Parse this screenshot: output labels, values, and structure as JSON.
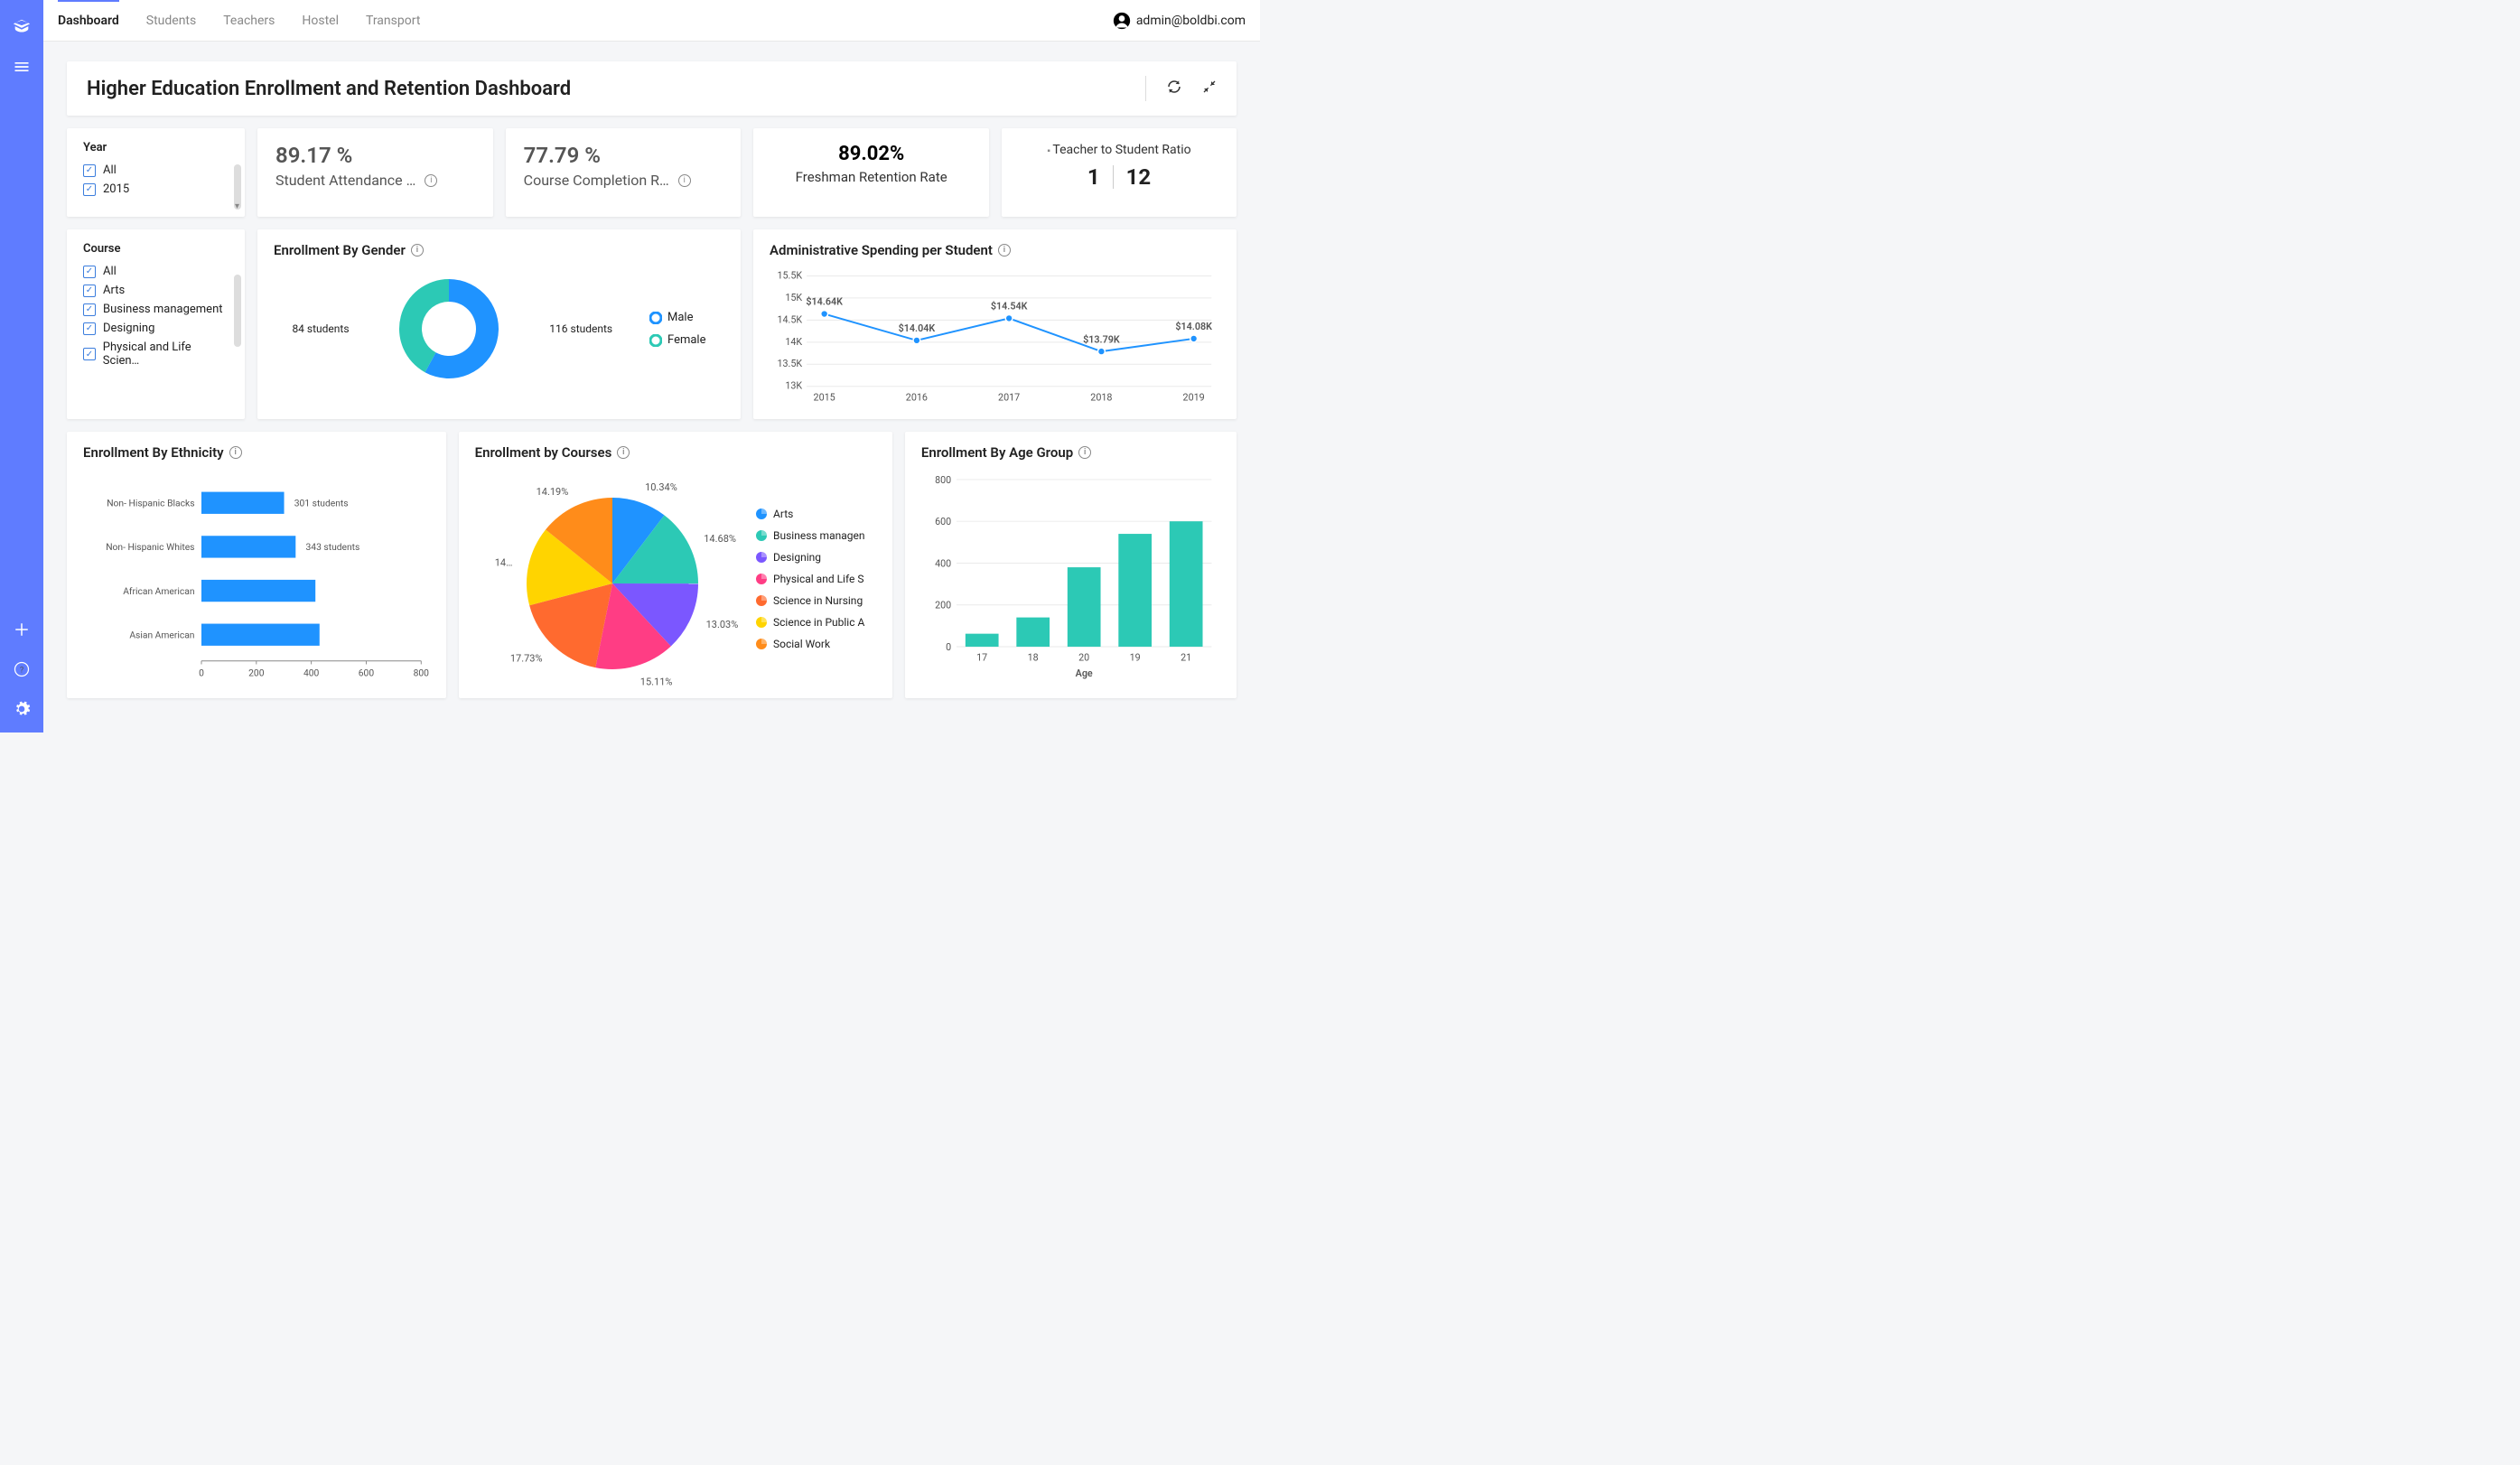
{
  "user_email": "admin@boldbi.com",
  "nav": {
    "tabs": [
      "Dashboard",
      "Students",
      "Teachers",
      "Hostel",
      "Transport"
    ],
    "active": 0
  },
  "dashboard_title": "Higher Education Enrollment and Retention Dashboard",
  "year_filter": {
    "title": "Year",
    "options": [
      {
        "label": "All",
        "checked": true
      },
      {
        "label": "2015",
        "checked": true
      }
    ]
  },
  "course_filter": {
    "title": "Course",
    "options": [
      {
        "label": "All",
        "checked": true
      },
      {
        "label": "Arts",
        "checked": true
      },
      {
        "label": "Business management",
        "checked": true
      },
      {
        "label": "Designing",
        "checked": true
      },
      {
        "label": "Physical and Life Scien…",
        "checked": true
      }
    ]
  },
  "kpi1": {
    "value": "89.17 %",
    "label": "Student Attendance …"
  },
  "kpi2": {
    "value": "77.79 %",
    "label": "Course Completion R…"
  },
  "kpi3": {
    "value": "89.02%",
    "label": "Freshman Retention Rate"
  },
  "ratio": {
    "title": "Teacher to Student Ratio",
    "a": "1",
    "b": "12"
  },
  "gender_chart": {
    "title": "Enrollment By Gender",
    "type": "donut",
    "series": [
      {
        "name": "Male",
        "value": 116,
        "label": "116 students",
        "color": "#1f93ff"
      },
      {
        "name": "Female",
        "value": 84,
        "label": "84 students",
        "color": "#2cc9b5"
      }
    ],
    "inner_radius": 0.55
  },
  "spending_chart": {
    "title": "Administrative Spending per Student",
    "type": "line",
    "x": [
      "2015",
      "2016",
      "2017",
      "2018",
      "2019"
    ],
    "y": [
      14.64,
      14.04,
      14.54,
      13.79,
      14.08
    ],
    "point_labels": [
      "$14.64K",
      "$14.04K",
      "$14.54K",
      "$13.79K",
      "$14.08K"
    ],
    "ylim": [
      13,
      15.5
    ],
    "ytick_step": 0.5,
    "line_color": "#1f93ff",
    "marker_color": "#1f93ff",
    "grid_color": "#eaeaea"
  },
  "ethnicity_chart": {
    "title": "Enrollment By Ethnicity",
    "type": "hbar",
    "categories": [
      "Non- Hispanic Blacks",
      "Non- Hispanic Whites",
      "African American",
      "Asian American"
    ],
    "values": [
      301,
      343,
      415,
      430
    ],
    "value_labels": [
      "301 students",
      "343 students",
      "",
      ""
    ],
    "xlim": [
      0,
      800
    ],
    "xtick_step": 200,
    "bar_color": "#1f93ff"
  },
  "courses_chart": {
    "title": "Enrollment by Courses",
    "type": "pie",
    "slices": [
      {
        "name": "Arts",
        "pct": 10.34,
        "color": "#1f93ff"
      },
      {
        "name": "Business managen",
        "pct": 14.68,
        "color": "#2cc9b5"
      },
      {
        "name": "Designing",
        "pct": 13.03,
        "color": "#7b57ff"
      },
      {
        "name": "Physical and Life S",
        "pct": 15.11,
        "color": "#ff3d84"
      },
      {
        "name": "Science in Nursing",
        "pct": 17.73,
        "color": "#ff6a2f"
      },
      {
        "name": "Science in Public A",
        "pct": 14.92,
        "color": "#ffd400",
        "out_label": "14…"
      },
      {
        "name": "Social Work",
        "pct": 14.19,
        "color": "#ff8c1a"
      }
    ]
  },
  "age_chart": {
    "title": "Enrollment By Age Group",
    "type": "bar",
    "categories": [
      "17",
      "18",
      "20",
      "19",
      "21"
    ],
    "values": [
      62,
      140,
      380,
      540,
      600
    ],
    "ylim": [
      0,
      800
    ],
    "ytick_step": 200,
    "bar_color": "#2cc9b5",
    "grid_color": "#eaeaea",
    "xlabel": "Age"
  },
  "colors": {
    "accent": "#5f7cff",
    "bg": "#f5f6f8",
    "card": "#ffffff"
  }
}
